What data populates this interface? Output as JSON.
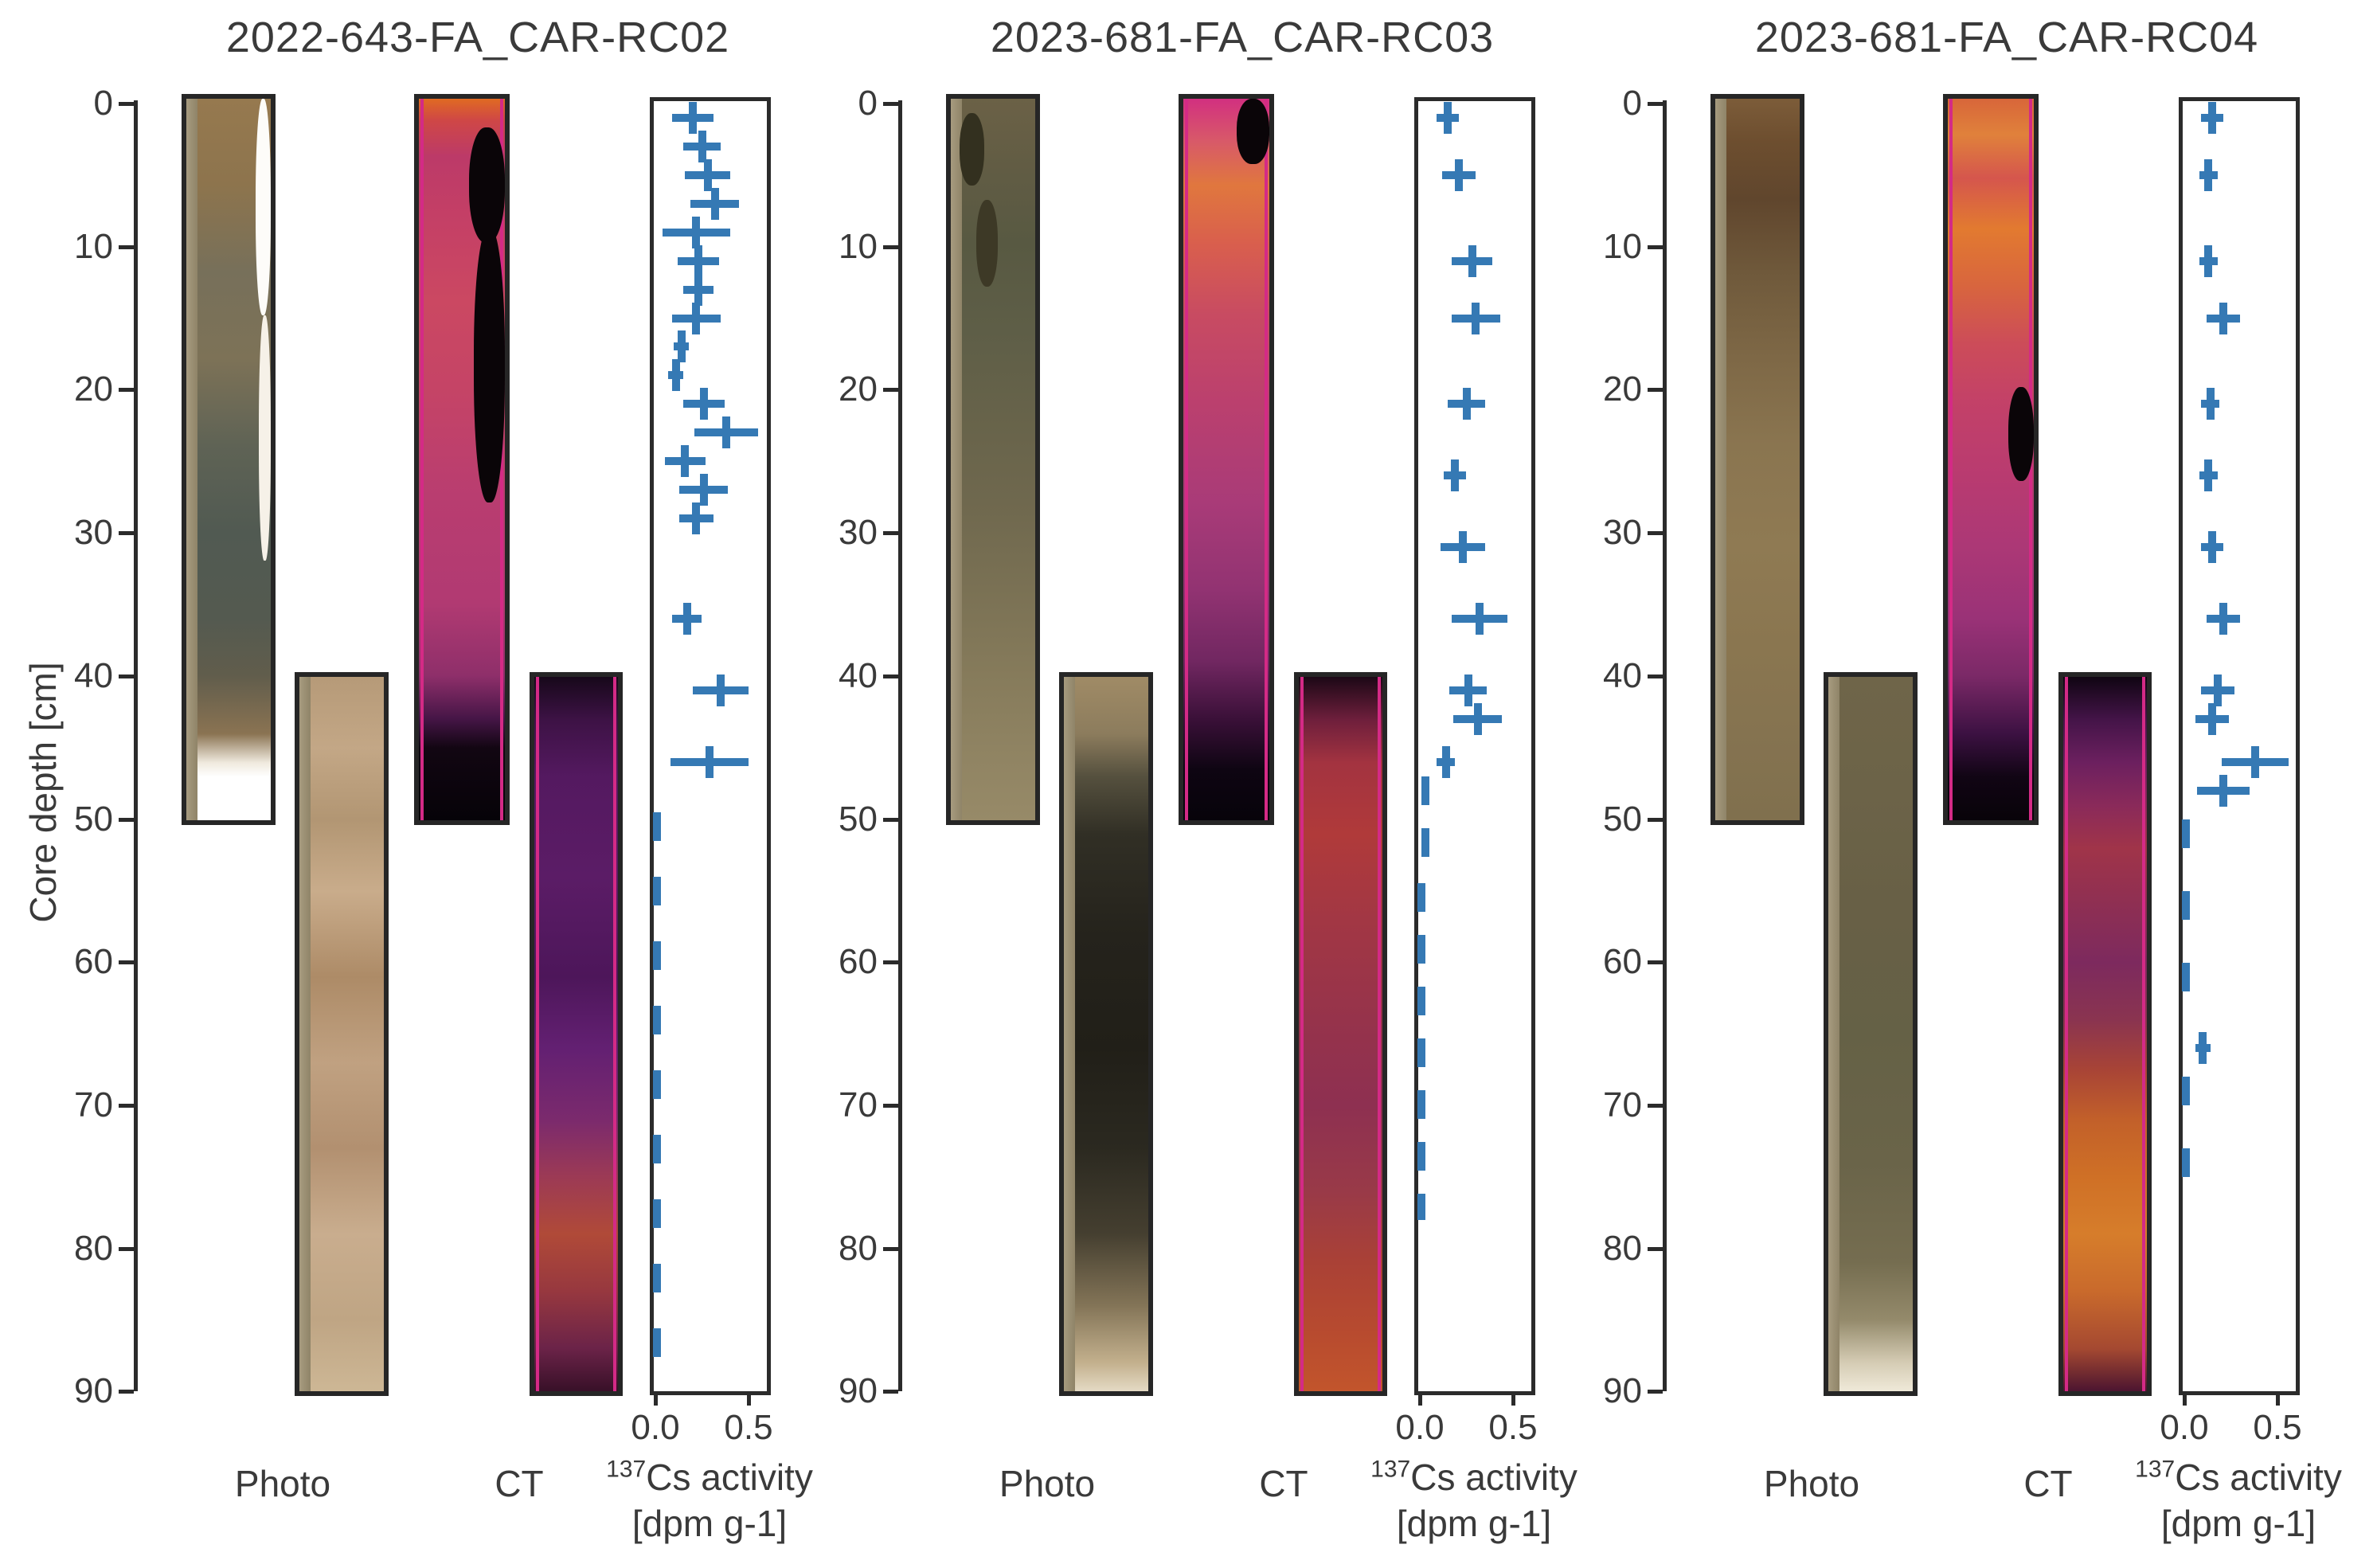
{
  "figure_type": "sediment-core composite figure: core photo, CT scan and Cs-137 activity profile for three cores",
  "axis": {
    "ylabel": "Core depth [cm]",
    "depth_ticks": [
      "0",
      "10",
      "20",
      "30",
      "40",
      "50",
      "60",
      "70",
      "80",
      "90"
    ],
    "depth_tick_values": [
      0,
      10,
      20,
      30,
      40,
      50,
      60,
      70,
      80,
      90
    ],
    "x_ticks": [
      "0.0",
      "0.5"
    ],
    "x_tick_values": [
      0.0,
      0.5
    ],
    "xlabel_sup": "137",
    "xlabel_main": "Cs activity",
    "xlabel_unit": "[dpm g-1]",
    "photo_label": "Photo",
    "ct_label": "CT",
    "xlim": [
      0,
      0.61
    ],
    "ylim": [
      90,
      0
    ],
    "grid": false
  },
  "colors": {
    "marker_blue": "#3579b4",
    "axis_dark": "#2b2b2b",
    "text": "#3a3a3a",
    "background": "#ffffff",
    "ct_liner_magenta": "#d42a86",
    "photo_liner_tan": "#a79b7f",
    "ct_black": "#0a0508"
  },
  "chart_data": [
    {
      "type": "scatter",
      "title": "2022-643-FA_CAR-RC02",
      "series_name": "137Cs activity [dpm g-1] vs core depth [cm], horizontal error bars",
      "points": [
        {
          "depth": 1,
          "value": 0.2,
          "xerr": 0.11
        },
        {
          "depth": 3,
          "value": 0.25,
          "xerr": 0.1
        },
        {
          "depth": 5,
          "value": 0.28,
          "xerr": 0.12
        },
        {
          "depth": 7,
          "value": 0.32,
          "xerr": 0.13
        },
        {
          "depth": 9,
          "value": 0.22,
          "xerr": 0.18
        },
        {
          "depth": 11,
          "value": 0.23,
          "xerr": 0.11
        },
        {
          "depth": 13,
          "value": 0.23,
          "xerr": 0.08
        },
        {
          "depth": 15,
          "value": 0.22,
          "xerr": 0.13
        },
        {
          "depth": 17,
          "value": 0.14,
          "xerr": 0.04
        },
        {
          "depth": 19,
          "value": 0.11,
          "xerr": 0.04
        },
        {
          "depth": 21,
          "value": 0.26,
          "xerr": 0.11
        },
        {
          "depth": 23,
          "value": 0.38,
          "xerr": 0.17
        },
        {
          "depth": 25,
          "value": 0.16,
          "xerr": 0.11
        },
        {
          "depth": 27,
          "value": 0.26,
          "xerr": 0.13
        },
        {
          "depth": 29,
          "value": 0.22,
          "xerr": 0.09
        },
        {
          "depth": 36,
          "value": 0.17,
          "xerr": 0.08
        },
        {
          "depth": 41,
          "value": 0.35,
          "xerr": 0.15
        },
        {
          "depth": 46,
          "value": 0.29,
          "xerr": 0.21
        }
      ],
      "below_detection_dashes": [
        {
          "from": 49.5,
          "to": 88,
          "value": 0.01,
          "period_cm": 4.5
        }
      ]
    },
    {
      "type": "scatter",
      "title": "2023-681-FA_CAR-RC03",
      "series_name": "137Cs activity [dpm g-1] vs core depth [cm], horizontal error bars",
      "points": [
        {
          "depth": 1,
          "value": 0.15,
          "xerr": 0.06
        },
        {
          "depth": 5,
          "value": 0.21,
          "xerr": 0.09
        },
        {
          "depth": 11,
          "value": 0.28,
          "xerr": 0.11
        },
        {
          "depth": 15,
          "value": 0.3,
          "xerr": 0.13
        },
        {
          "depth": 21,
          "value": 0.25,
          "xerr": 0.1
        },
        {
          "depth": 26,
          "value": 0.19,
          "xerr": 0.06
        },
        {
          "depth": 31,
          "value": 0.23,
          "xerr": 0.12
        },
        {
          "depth": 36,
          "value": 0.32,
          "xerr": 0.15
        },
        {
          "depth": 41,
          "value": 0.26,
          "xerr": 0.1
        },
        {
          "depth": 43,
          "value": 0.31,
          "xerr": 0.13
        },
        {
          "depth": 46,
          "value": 0.14,
          "xerr": 0.05
        }
      ],
      "below_detection_dashes": [
        {
          "from": 47,
          "to": 53.5,
          "value": 0.03,
          "period_cm": 3.6
        },
        {
          "from": 54.5,
          "to": 78,
          "value": 0.01,
          "period_cm": 3.6
        }
      ]
    },
    {
      "type": "scatter",
      "title": "2023-681-FA_CAR-RC04",
      "series_name": "137Cs activity [dpm g-1] vs core depth [cm], horizontal error bars",
      "points": [
        {
          "depth": 1,
          "value": 0.15,
          "xerr": 0.06
        },
        {
          "depth": 5,
          "value": 0.13,
          "xerr": 0.05
        },
        {
          "depth": 11,
          "value": 0.13,
          "xerr": 0.05
        },
        {
          "depth": 15,
          "value": 0.21,
          "xerr": 0.09
        },
        {
          "depth": 21,
          "value": 0.14,
          "xerr": 0.05
        },
        {
          "depth": 26,
          "value": 0.13,
          "xerr": 0.05
        },
        {
          "depth": 31,
          "value": 0.15,
          "xerr": 0.06
        },
        {
          "depth": 36,
          "value": 0.21,
          "xerr": 0.09
        },
        {
          "depth": 41,
          "value": 0.18,
          "xerr": 0.09
        },
        {
          "depth": 43,
          "value": 0.15,
          "xerr": 0.09
        },
        {
          "depth": 46,
          "value": 0.38,
          "xerr": 0.18
        },
        {
          "depth": 48,
          "value": 0.21,
          "xerr": 0.14
        },
        {
          "depth": 66,
          "value": 0.1,
          "xerr": 0.04
        }
      ],
      "below_detection_dashes": [
        {
          "from": 50,
          "to": 63,
          "value": 0.01,
          "period_cm": 5
        },
        {
          "from": 68,
          "to": 77,
          "value": 0.01,
          "period_cm": 5
        }
      ]
    }
  ],
  "strips": [
    {
      "photo1": {
        "depth_range": [
          0,
          50
        ],
        "stops": [
          [
            0,
            "#96794f"
          ],
          [
            12,
            "#8d744d"
          ],
          [
            24,
            "#77705a"
          ],
          [
            36,
            "#7d7257"
          ],
          [
            48,
            "#5f6355"
          ],
          [
            60,
            "#515a52"
          ],
          [
            72,
            "#545a50"
          ],
          [
            80,
            "#615d4c"
          ],
          [
            88,
            "#8a7352"
          ],
          [
            92,
            "#efe9dd"
          ],
          [
            94,
            "#ffffff"
          ],
          [
            100,
            "#ffffff"
          ]
        ],
        "blobs": [
          {
            "l": 82,
            "t": 0,
            "w": 18,
            "h": 30,
            "c": "#fdfcf9"
          },
          {
            "l": 86,
            "t": 30,
            "w": 14,
            "h": 34,
            "c": "#f6f1e8"
          }
        ]
      },
      "photo2": {
        "depth_range": [
          40,
          90
        ],
        "stops": [
          [
            0,
            "#b69a78"
          ],
          [
            10,
            "#c3a786"
          ],
          [
            20,
            "#b29673"
          ],
          [
            30,
            "#c9ac8b"
          ],
          [
            42,
            "#ad8b67"
          ],
          [
            54,
            "#c0a181"
          ],
          [
            66,
            "#b29070"
          ],
          [
            78,
            "#c9ad8e"
          ],
          [
            90,
            "#bfa584"
          ],
          [
            100,
            "#cdb795"
          ]
        ],
        "blobs": []
      },
      "ct1": {
        "depth_range": [
          0,
          50
        ],
        "stops": [
          [
            0,
            "#e06a22"
          ],
          [
            3,
            "#cf4746"
          ],
          [
            8,
            "#bc3a68"
          ],
          [
            16,
            "#c43f66"
          ],
          [
            28,
            "#cb4862"
          ],
          [
            40,
            "#c54466"
          ],
          [
            55,
            "#b93d70"
          ],
          [
            70,
            "#b13a72"
          ],
          [
            80,
            "#8e2f6a"
          ],
          [
            86,
            "#451546"
          ],
          [
            90,
            "#120612"
          ],
          [
            100,
            "#060308"
          ]
        ],
        "blobs": [
          {
            "l": 58,
            "t": 4,
            "w": 42,
            "h": 16,
            "c": "#0a0508"
          },
          {
            "l": 64,
            "t": 18,
            "w": 36,
            "h": 38,
            "c": "#0a0508"
          }
        ]
      },
      "ct2": {
        "depth_range": [
          40,
          90
        ],
        "stops": [
          [
            0,
            "#17081a"
          ],
          [
            6,
            "#3d1245"
          ],
          [
            14,
            "#541960"
          ],
          [
            28,
            "#5b1c66"
          ],
          [
            42,
            "#4d165a"
          ],
          [
            52,
            "#632072"
          ],
          [
            62,
            "#7b2a6d"
          ],
          [
            70,
            "#9c3a55"
          ],
          [
            78,
            "#b04a38"
          ],
          [
            86,
            "#97383f"
          ],
          [
            94,
            "#6b2348"
          ],
          [
            100,
            "#381028"
          ]
        ],
        "blobs": []
      }
    },
    {
      "photo1": {
        "depth_range": [
          0,
          50
        ],
        "stops": [
          [
            0,
            "#6b6146"
          ],
          [
            10,
            "#615c44"
          ],
          [
            20,
            "#585942"
          ],
          [
            32,
            "#5e5e47"
          ],
          [
            44,
            "#67634a"
          ],
          [
            56,
            "#6f684e"
          ],
          [
            68,
            "#7a7154"
          ],
          [
            80,
            "#867b5b"
          ],
          [
            90,
            "#8f8362"
          ],
          [
            100,
            "#978a68"
          ]
        ],
        "blobs": [
          {
            "l": 10,
            "t": 2,
            "w": 30,
            "h": 10,
            "c": "#33301f"
          },
          {
            "l": 30,
            "t": 14,
            "w": 26,
            "h": 12,
            "c": "#3d3926"
          }
        ]
      },
      "photo2": {
        "depth_range": [
          40,
          90
        ],
        "stops": [
          [
            0,
            "#a08b66"
          ],
          [
            8,
            "#8c7c5d"
          ],
          [
            14,
            "#55503e"
          ],
          [
            22,
            "#312f25"
          ],
          [
            36,
            "#25231c"
          ],
          [
            52,
            "#211f18"
          ],
          [
            66,
            "#2b2920"
          ],
          [
            78,
            "#453f30"
          ],
          [
            88,
            "#837457"
          ],
          [
            96,
            "#c3b08d"
          ],
          [
            100,
            "#e4dac4"
          ]
        ],
        "blobs": []
      },
      "ct1": {
        "depth_range": [
          0,
          50
        ],
        "stops": [
          [
            0,
            "#d23080"
          ],
          [
            6,
            "#d85a68"
          ],
          [
            12,
            "#e0773e"
          ],
          [
            20,
            "#d95f4d"
          ],
          [
            30,
            "#c84b62"
          ],
          [
            42,
            "#bb406e"
          ],
          [
            56,
            "#a93b78"
          ],
          [
            68,
            "#923372"
          ],
          [
            78,
            "#712761"
          ],
          [
            86,
            "#3a1038"
          ],
          [
            93,
            "#0e0512"
          ],
          [
            100,
            "#07030a"
          ]
        ],
        "blobs": [
          {
            "l": 62,
            "t": 0,
            "w": 38,
            "h": 9,
            "c": "#0a0508"
          }
        ]
      },
      "ct2": {
        "depth_range": [
          40,
          90
        ],
        "stops": [
          [
            0,
            "#1c0816"
          ],
          [
            6,
            "#6e1f3c"
          ],
          [
            12,
            "#a33340"
          ],
          [
            22,
            "#b03a3a"
          ],
          [
            34,
            "#a23744"
          ],
          [
            48,
            "#96334b"
          ],
          [
            60,
            "#8e3051"
          ],
          [
            72,
            "#993a48"
          ],
          [
            82,
            "#aa4136"
          ],
          [
            92,
            "#b84b2f"
          ],
          [
            100,
            "#c2552c"
          ]
        ],
        "blobs": []
      }
    },
    {
      "photo1": {
        "depth_range": [
          0,
          50
        ],
        "stops": [
          [
            0,
            "#7c5c39"
          ],
          [
            6,
            "#6d4e2f"
          ],
          [
            14,
            "#60462d"
          ],
          [
            24,
            "#6f593b"
          ],
          [
            36,
            "#7e6846"
          ],
          [
            48,
            "#8a7550"
          ],
          [
            62,
            "#8f7a53"
          ],
          [
            76,
            "#8a7650"
          ],
          [
            88,
            "#857350"
          ],
          [
            100,
            "#80704e"
          ]
        ],
        "blobs": [
          {
            "l": 20,
            "t": 1,
            "w": 40,
            "h": 6,
            "c": "#4a3category"
          }
        ]
      },
      "photo2": {
        "depth_range": [
          40,
          90
        ],
        "stops": [
          [
            0,
            "#6f6549"
          ],
          [
            16,
            "#6c6348"
          ],
          [
            32,
            "#686046"
          ],
          [
            50,
            "#656146"
          ],
          [
            68,
            "#6a6449"
          ],
          [
            82,
            "#756d50"
          ],
          [
            90,
            "#948a6b"
          ],
          [
            96,
            "#d5ccb4"
          ],
          [
            100,
            "#efe9d8"
          ]
        ],
        "blobs": []
      },
      "ct1": {
        "depth_range": [
          0,
          50
        ],
        "stops": [
          [
            0,
            "#d8663a"
          ],
          [
            5,
            "#e0813b"
          ],
          [
            11,
            "#d5564d"
          ],
          [
            18,
            "#e27a30"
          ],
          [
            26,
            "#d8653e"
          ],
          [
            34,
            "#cc4c59"
          ],
          [
            42,
            "#c34168"
          ],
          [
            52,
            "#b93b70"
          ],
          [
            62,
            "#ac3876"
          ],
          [
            72,
            "#9a3277"
          ],
          [
            80,
            "#7b2967"
          ],
          [
            88,
            "#3c1142"
          ],
          [
            94,
            "#110514"
          ],
          [
            100,
            "#080309"
          ]
        ],
        "blobs": [
          {
            "l": 70,
            "t": 40,
            "w": 30,
            "h": 13,
            "c": "#0a0508"
          }
        ]
      },
      "ct2": {
        "depth_range": [
          40,
          90
        ],
        "stops": [
          [
            0,
            "#100512"
          ],
          [
            6,
            "#441448"
          ],
          [
            12,
            "#6c205f"
          ],
          [
            18,
            "#8a2a5a"
          ],
          [
            24,
            "#a03449"
          ],
          [
            32,
            "#8e2f53"
          ],
          [
            40,
            "#7d2a5e"
          ],
          [
            48,
            "#8a3450"
          ],
          [
            55,
            "#a84436"
          ],
          [
            62,
            "#c2602a"
          ],
          [
            70,
            "#cf7026"
          ],
          [
            78,
            "#d67d2b"
          ],
          [
            86,
            "#c96a2c"
          ],
          [
            94,
            "#a54931"
          ],
          [
            100,
            "#4c1530"
          ]
        ],
        "blobs": []
      }
    }
  ]
}
